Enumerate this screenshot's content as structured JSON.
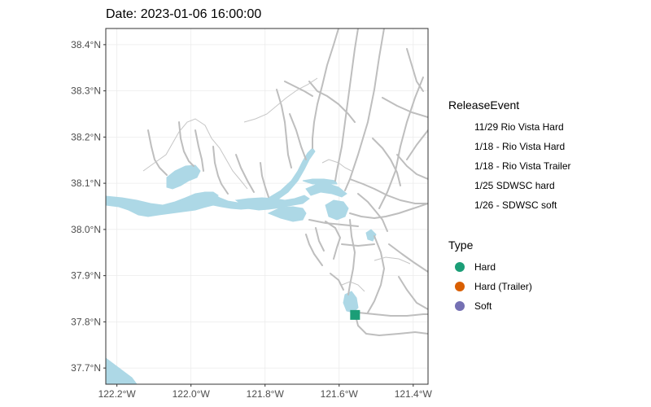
{
  "title": "Date: 2023-01-06 16:00:00",
  "axes": {
    "y_ticks": [
      {
        "label": "38.4°N",
        "value": 38.4
      },
      {
        "label": "38.3°N",
        "value": 38.3
      },
      {
        "label": "38.2°N",
        "value": 38.2
      },
      {
        "label": "38.1°N",
        "value": 38.1
      },
      {
        "label": "38.0°N",
        "value": 38.0
      },
      {
        "label": "37.9°N",
        "value": 37.9
      },
      {
        "label": "37.8°N",
        "value": 37.8
      },
      {
        "label": "37.7°N",
        "value": 37.7
      }
    ],
    "x_ticks": [
      {
        "label": "122.2°W",
        "value": -122.2
      },
      {
        "label": "122.0°W",
        "value": -122.0
      },
      {
        "label": "121.8°W",
        "value": -121.8
      },
      {
        "label": "121.6°W",
        "value": -121.6
      },
      {
        "label": "121.4°W",
        "value": -121.4
      }
    ],
    "lon_range": [
      -122.23,
      -121.36
    ],
    "lat_range": [
      37.665,
      38.435
    ]
  },
  "legend_release": {
    "title": "ReleaseEvent",
    "items": [
      "11/29 Rio Vista Hard",
      "1/18 - Rio Vista Hard",
      "1/18 - Rio Vista Trailer",
      "1/25 SDWSC hard",
      "1/26 - SDWSC soft"
    ]
  },
  "legend_type": {
    "title": "Type",
    "items": [
      {
        "label": "Hard",
        "color": "#1b9e77"
      },
      {
        "label": "Hard (Trailer)",
        "color": "#d95f02"
      },
      {
        "label": "Soft",
        "color": "#7570b3"
      }
    ]
  },
  "markers": [
    {
      "lon": -121.557,
      "lat": 37.815,
      "type": "Hard",
      "color": "#1b9e77",
      "shape": "square"
    }
  ],
  "colors": {
    "water": "#add8e6",
    "channel": "#bebebe",
    "grid": "#ebebeb",
    "border": "#333333"
  }
}
